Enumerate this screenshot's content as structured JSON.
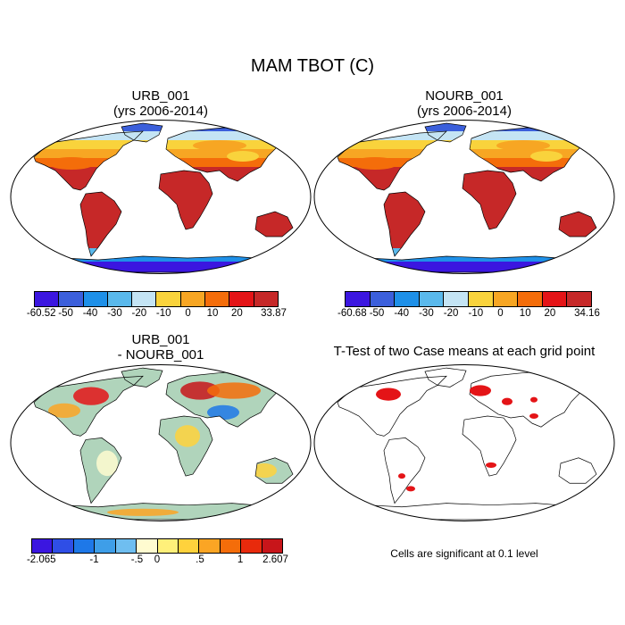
{
  "title": "MAM TBOT (C)",
  "panels": [
    {
      "id": "urb",
      "title_line1": "URB_001",
      "title_line2": "(yrs 2006-2014)",
      "colorbar": {
        "colors": [
          "#3b16e0",
          "#3b5fdb",
          "#1e90e8",
          "#5ab9ec",
          "#c4e4f4",
          "#f9d33c",
          "#f7a623",
          "#f46d0a",
          "#e41417",
          "#c62828"
        ],
        "labels": [
          "-60.52",
          "-50",
          "-40",
          "-30",
          "-20",
          "-10",
          "0",
          "10",
          "20",
          "33.87"
        ]
      }
    },
    {
      "id": "nourb",
      "title_line1": "NOURB_001",
      "title_line2": "(yrs 2006-2014)",
      "colorbar": {
        "colors": [
          "#3b16e0",
          "#3b5fdb",
          "#1e90e8",
          "#5ab9ec",
          "#c4e4f4",
          "#f9d33c",
          "#f7a623",
          "#f46d0a",
          "#e41417",
          "#c62828"
        ],
        "labels": [
          "-60.68",
          "-50",
          "-40",
          "-30",
          "-20",
          "-10",
          "0",
          "10",
          "20",
          "34.16"
        ]
      }
    },
    {
      "id": "diff",
      "title_line1": "URB_001",
      "title_line2": "- NOURB_001",
      "colorbar": {
        "colors": [
          "#3b16e0",
          "#2f4ee6",
          "#1e78e8",
          "#3e9ee8",
          "#6fbef0",
          "#fffbd0",
          "#fff07a",
          "#ffd23c",
          "#fba524",
          "#f46d0a",
          "#e82a0c",
          "#c8151a"
        ],
        "labels": [
          "-2.065",
          "-1",
          "-.5",
          "0",
          ".5",
          "1",
          "2.607"
        ]
      }
    },
    {
      "id": "ttest",
      "title_line1": "T-Test of two Case means at each grid point",
      "footnote": "Cells are significant at 0.1 level"
    }
  ]
}
